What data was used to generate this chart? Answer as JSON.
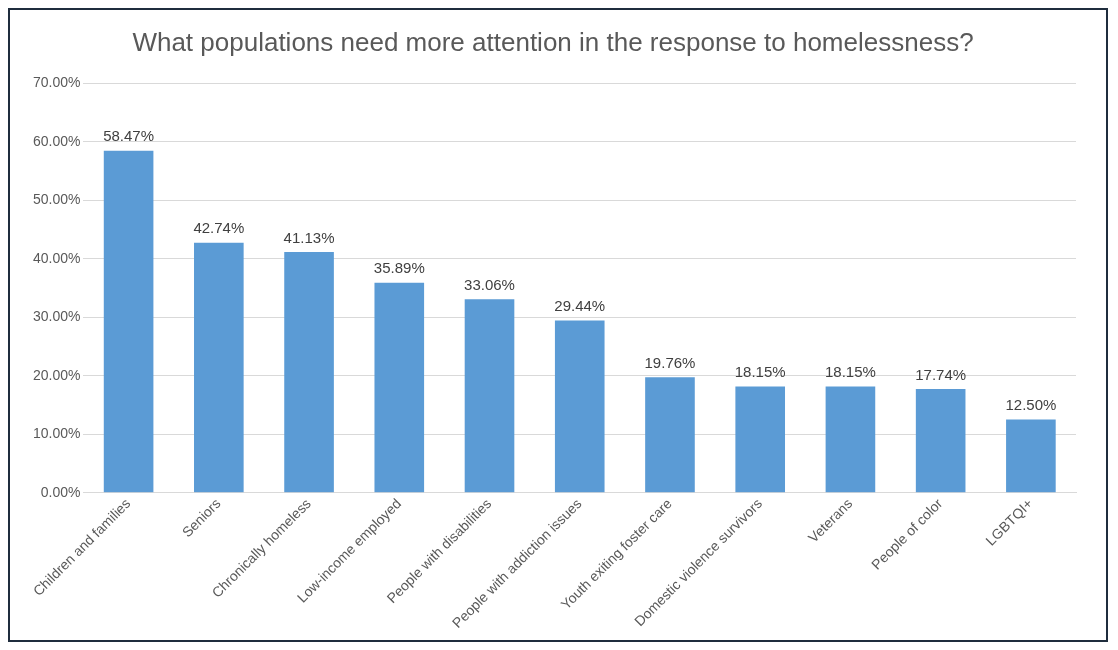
{
  "chart_data": {
    "type": "bar",
    "title": "What populations need more attention in the response to homelessness?",
    "categories": [
      "Children and families",
      "Seniors",
      "Chronically homeless",
      "Low-income employed",
      "People with disabilities",
      "People with addiction issues",
      "Youth exiting foster care",
      "Domestic violence survivors",
      "Veterans",
      "People of color",
      "LGBTQI+"
    ],
    "values": [
      58.47,
      42.74,
      41.13,
      35.89,
      33.06,
      29.44,
      19.76,
      18.15,
      18.15,
      17.74,
      12.5
    ],
    "value_labels": [
      "58.47%",
      "42.74%",
      "41.13%",
      "35.89%",
      "33.06%",
      "29.44%",
      "19.76%",
      "18.15%",
      "18.15%",
      "17.74%",
      "12.50%"
    ],
    "color": "#5b9bd5",
    "ylim": [
      0,
      70
    ],
    "yticks": [
      {
        "value": 0,
        "label": "0.00%"
      },
      {
        "value": 10,
        "label": "10.00%"
      },
      {
        "value": 20,
        "label": "20.00%"
      },
      {
        "value": 30,
        "label": "30.00%"
      },
      {
        "value": 40,
        "label": "40.00%"
      },
      {
        "value": 50,
        "label": "50.00%"
      },
      {
        "value": 60,
        "label": "60.00%"
      },
      {
        "value": 70,
        "label": "70.00%"
      }
    ],
    "grid": "y",
    "legend": false
  }
}
